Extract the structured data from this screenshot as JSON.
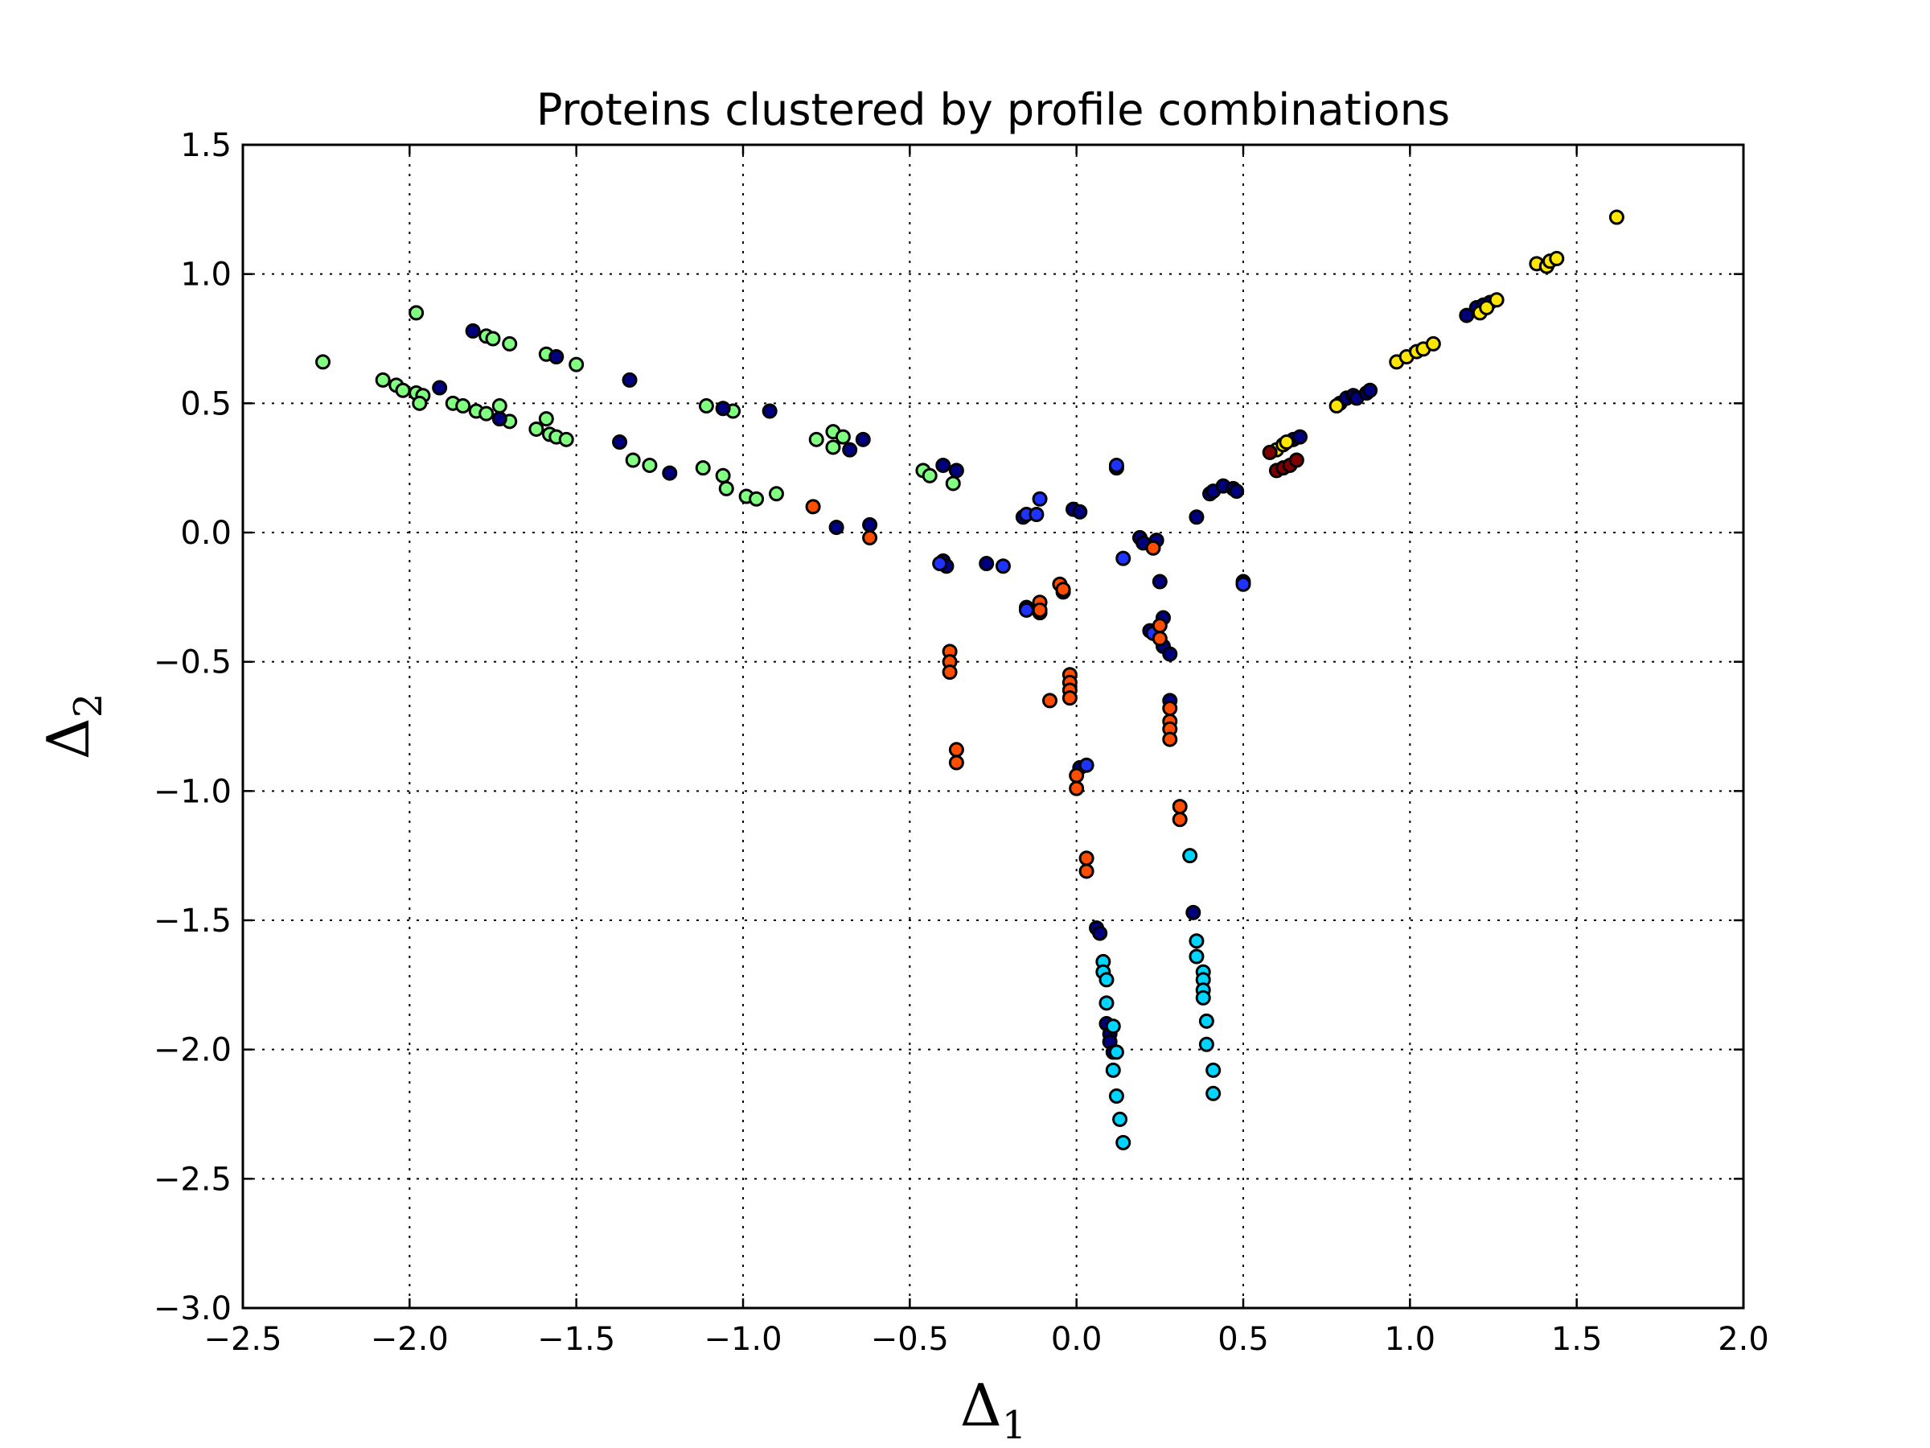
{
  "chart_data": {
    "type": "scatter",
    "title": "Proteins clustered by profile combinations",
    "xlabel": {
      "base": "Δ",
      "sub": "1"
    },
    "ylabel": {
      "base": "Δ",
      "sub": "2"
    },
    "xlim": [
      -2.5,
      2.0
    ],
    "ylim": [
      -3.0,
      1.5
    ],
    "xticks": [
      "−2.5",
      "−2.0",
      "−1.5",
      "−1.0",
      "−0.5",
      "0.0",
      "0.5",
      "1.0",
      "1.5",
      "2.0"
    ],
    "yticks": [
      "1.5",
      "1.0",
      "0.5",
      "0.0",
      "−0.5",
      "−1.0",
      "−1.5",
      "−2.0",
      "−2.5",
      "−3.0"
    ],
    "grid": true,
    "series": [
      {
        "color": "#80ff80",
        "points": [
          [
            -2.26,
            0.66
          ],
          [
            -1.98,
            0.85
          ],
          [
            -2.08,
            0.59
          ],
          [
            -2.04,
            0.57
          ],
          [
            -2.02,
            0.55
          ],
          [
            -1.98,
            0.54
          ],
          [
            -1.96,
            0.53
          ],
          [
            -1.97,
            0.5
          ],
          [
            -1.87,
            0.5
          ],
          [
            -1.84,
            0.49
          ],
          [
            -1.8,
            0.47
          ],
          [
            -1.77,
            0.46
          ],
          [
            -1.73,
            0.49
          ],
          [
            -1.7,
            0.43
          ],
          [
            -1.62,
            0.4
          ],
          [
            -1.59,
            0.44
          ],
          [
            -1.58,
            0.38
          ],
          [
            -1.56,
            0.37
          ],
          [
            -1.53,
            0.36
          ],
          [
            -1.77,
            0.76
          ],
          [
            -1.75,
            0.75
          ],
          [
            -1.7,
            0.73
          ],
          [
            -1.59,
            0.69
          ],
          [
            -1.5,
            0.65
          ],
          [
            -1.33,
            0.28
          ],
          [
            -1.28,
            0.26
          ],
          [
            -1.12,
            0.25
          ],
          [
            -1.06,
            0.22
          ],
          [
            -1.05,
            0.17
          ],
          [
            -0.99,
            0.14
          ],
          [
            -0.96,
            0.13
          ],
          [
            -0.9,
            0.15
          ],
          [
            -1.11,
            0.49
          ],
          [
            -1.03,
            0.47
          ],
          [
            -0.78,
            0.36
          ],
          [
            -0.73,
            0.39
          ],
          [
            -0.73,
            0.33
          ],
          [
            -0.7,
            0.37
          ],
          [
            -0.46,
            0.24
          ],
          [
            -0.44,
            0.22
          ],
          [
            -0.37,
            0.19
          ]
        ]
      },
      {
        "color": "#00007f",
        "points": [
          [
            -1.81,
            0.78
          ],
          [
            -1.73,
            0.44
          ],
          [
            -1.91,
            0.56
          ],
          [
            -1.56,
            0.68
          ],
          [
            -1.34,
            0.59
          ],
          [
            -1.37,
            0.35
          ],
          [
            -1.22,
            0.23
          ],
          [
            -1.06,
            0.48
          ],
          [
            -0.92,
            0.47
          ],
          [
            -0.64,
            0.36
          ],
          [
            -0.68,
            0.32
          ],
          [
            -0.72,
            0.02
          ],
          [
            -0.62,
            0.03
          ],
          [
            -0.4,
            0.26
          ],
          [
            -0.36,
            0.24
          ],
          [
            -0.4,
            -0.11
          ],
          [
            -0.39,
            -0.13
          ],
          [
            -0.27,
            -0.12
          ],
          [
            -0.16,
            0.06
          ],
          [
            -0.01,
            0.09
          ],
          [
            0.01,
            0.08
          ],
          [
            0.12,
            0.25
          ],
          [
            0.19,
            -0.02
          ],
          [
            0.2,
            -0.04
          ],
          [
            0.24,
            -0.03
          ],
          [
            0.25,
            -0.19
          ],
          [
            0.22,
            -0.38
          ],
          [
            0.26,
            -0.33
          ],
          [
            0.26,
            -0.44
          ],
          [
            0.28,
            -0.47
          ],
          [
            0.28,
            -0.65
          ],
          [
            0.36,
            0.06
          ],
          [
            0.4,
            0.15
          ],
          [
            0.41,
            0.16
          ],
          [
            0.44,
            0.18
          ],
          [
            0.47,
            0.17
          ],
          [
            0.48,
            0.16
          ],
          [
            0.5,
            -0.19
          ],
          [
            0.65,
            0.36
          ],
          [
            0.67,
            0.37
          ],
          [
            0.79,
            0.5
          ],
          [
            0.81,
            0.52
          ],
          [
            0.83,
            0.53
          ],
          [
            0.84,
            0.52
          ],
          [
            0.87,
            0.54
          ],
          [
            0.88,
            0.55
          ],
          [
            1.17,
            0.84
          ],
          [
            1.2,
            0.87
          ],
          [
            1.22,
            0.88
          ],
          [
            1.24,
            0.89
          ],
          [
            0.01,
            -0.91
          ],
          [
            0.06,
            -1.53
          ],
          [
            0.07,
            -1.55
          ],
          [
            0.35,
            -1.47
          ],
          [
            0.09,
            -1.9
          ],
          [
            0.1,
            -1.94
          ],
          [
            0.1,
            -1.97
          ],
          [
            0.11,
            -2.01
          ],
          [
            -0.15,
            -0.29
          ],
          [
            -0.11,
            -0.31
          ]
        ]
      },
      {
        "color": "#1f33ff",
        "points": [
          [
            -0.15,
            0.07
          ],
          [
            -0.11,
            0.13
          ],
          [
            -0.12,
            0.07
          ],
          [
            -0.41,
            -0.12
          ],
          [
            -0.22,
            -0.13
          ],
          [
            0.14,
            -0.1
          ],
          [
            0.12,
            0.26
          ],
          [
            -0.15,
            -0.3
          ],
          [
            -0.04,
            -0.23
          ],
          [
            0.03,
            -0.9
          ],
          [
            0.5,
            -0.2
          ],
          [
            0.23,
            -0.39
          ]
        ]
      },
      {
        "color": "#ff4d00",
        "points": [
          [
            -0.79,
            0.1
          ],
          [
            -0.62,
            -0.02
          ],
          [
            -0.38,
            -0.46
          ],
          [
            -0.38,
            -0.5
          ],
          [
            -0.38,
            -0.54
          ],
          [
            -0.36,
            -0.84
          ],
          [
            -0.36,
            -0.89
          ],
          [
            -0.11,
            -0.27
          ],
          [
            -0.11,
            -0.3
          ],
          [
            -0.05,
            -0.2
          ],
          [
            -0.04,
            -0.22
          ],
          [
            -0.02,
            -0.55
          ],
          [
            -0.02,
            -0.58
          ],
          [
            -0.02,
            -0.61
          ],
          [
            -0.02,
            -0.64
          ],
          [
            -0.08,
            -0.65
          ],
          [
            0.0,
            -0.94
          ],
          [
            0.0,
            -0.99
          ],
          [
            0.03,
            -1.26
          ],
          [
            0.03,
            -1.31
          ],
          [
            0.23,
            -0.06
          ],
          [
            0.25,
            -0.36
          ],
          [
            0.25,
            -0.41
          ],
          [
            0.28,
            -0.68
          ],
          [
            0.28,
            -0.73
          ],
          [
            0.28,
            -0.76
          ],
          [
            0.28,
            -0.8
          ],
          [
            0.31,
            -1.06
          ],
          [
            0.31,
            -1.11
          ]
        ]
      },
      {
        "color": "#00d4ff",
        "points": [
          [
            0.34,
            -1.25
          ],
          [
            0.36,
            -1.58
          ],
          [
            0.36,
            -1.64
          ],
          [
            0.38,
            -1.7
          ],
          [
            0.38,
            -1.73
          ],
          [
            0.38,
            -1.77
          ],
          [
            0.38,
            -1.8
          ],
          [
            0.39,
            -1.89
          ],
          [
            0.39,
            -1.98
          ],
          [
            0.41,
            -2.08
          ],
          [
            0.41,
            -2.17
          ],
          [
            0.08,
            -1.66
          ],
          [
            0.08,
            -1.7
          ],
          [
            0.09,
            -1.73
          ],
          [
            0.09,
            -1.82
          ],
          [
            0.11,
            -1.91
          ],
          [
            0.12,
            -2.01
          ],
          [
            0.11,
            -2.08
          ],
          [
            0.12,
            -2.18
          ],
          [
            0.13,
            -2.27
          ],
          [
            0.14,
            -2.36
          ]
        ]
      },
      {
        "color": "#ffe600",
        "points": [
          [
            0.6,
            0.32
          ],
          [
            0.62,
            0.34
          ],
          [
            0.63,
            0.35
          ],
          [
            0.78,
            0.49
          ],
          [
            0.96,
            0.66
          ],
          [
            0.99,
            0.68
          ],
          [
            1.02,
            0.7
          ],
          [
            1.04,
            0.71
          ],
          [
            1.07,
            0.73
          ],
          [
            1.21,
            0.85
          ],
          [
            1.23,
            0.87
          ],
          [
            1.26,
            0.9
          ],
          [
            1.38,
            1.04
          ],
          [
            1.41,
            1.03
          ],
          [
            1.42,
            1.05
          ],
          [
            1.44,
            1.06
          ],
          [
            1.62,
            1.22
          ]
        ]
      },
      {
        "color": "#7f0000",
        "points": [
          [
            0.6,
            0.24
          ],
          [
            0.62,
            0.25
          ],
          [
            0.64,
            0.26
          ],
          [
            0.66,
            0.28
          ],
          [
            0.58,
            0.31
          ]
        ]
      }
    ]
  }
}
